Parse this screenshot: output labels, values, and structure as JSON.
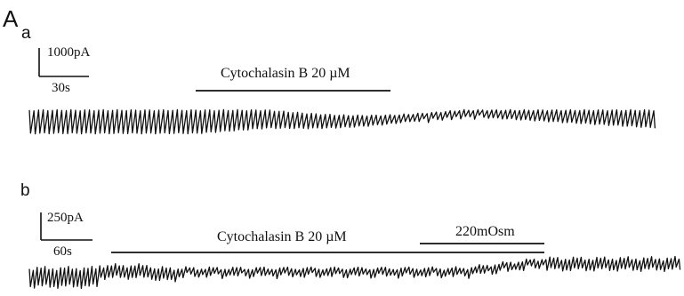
{
  "panel_label": "A",
  "panels": [
    {
      "label": "a",
      "scale_bar": {
        "current": "1000pA",
        "time": "30s"
      },
      "annotations": [
        {
          "text": "Cytochalasin B 20 µM"
        }
      ]
    },
    {
      "label": "b",
      "scale_bar": {
        "current": "250pA",
        "time": "60s"
      },
      "annotations": [
        {
          "text": "Cytochalasin B 20 µM"
        },
        {
          "text": "220mOsm"
        }
      ]
    }
  ],
  "colors": {
    "ink": "#111111",
    "background": "#ffffff"
  }
}
